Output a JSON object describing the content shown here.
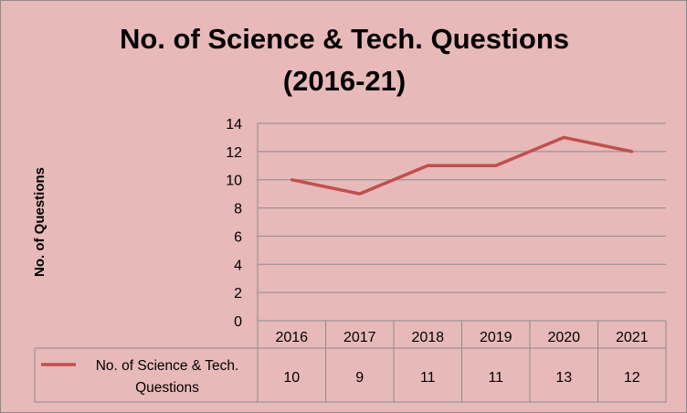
{
  "chart_data": {
    "type": "line",
    "title_line1": "No. of Science & Tech. Questions",
    "title_line2": "(2016-21)",
    "ylabel": "No. of Questions",
    "xlabel": "",
    "categories": [
      "2016",
      "2017",
      "2018",
      "2019",
      "2020",
      "2021"
    ],
    "series": [
      {
        "name": "No. of Science & Tech. Questions",
        "name_line1": "No. of Science & Tech.",
        "name_line2": "Questions",
        "values": [
          10,
          9,
          11,
          11,
          13,
          12
        ]
      }
    ],
    "ylim": [
      0,
      14
    ],
    "yticks": [
      "0",
      "2",
      "4",
      "6",
      "8",
      "10",
      "12",
      "14"
    ],
    "grid": true,
    "legend": "data-table-left",
    "data_table": true
  },
  "colors": {
    "background": "#e8b9b9",
    "line": "#c0504d",
    "grid": "#8c8c8c",
    "plot_area": "#e8b9b9"
  }
}
